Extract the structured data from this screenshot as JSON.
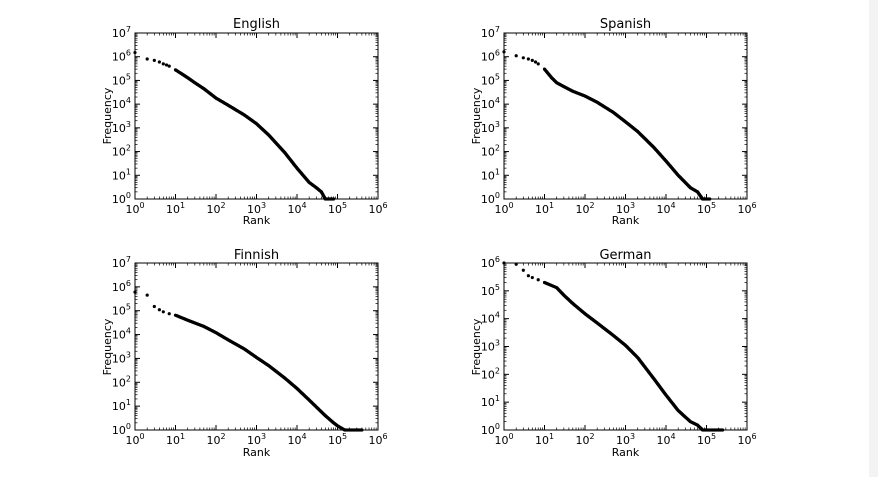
{
  "chart_data": [
    {
      "type": "scatter",
      "title": "English",
      "xlabel": "Rank",
      "ylabel": "Frequency",
      "xscale": "log",
      "yscale": "log",
      "xlim": [
        1,
        1000000
      ],
      "ylim": [
        1,
        10000000
      ],
      "x_ticks": [
        1,
        10,
        100,
        1000,
        10000,
        100000,
        1000000
      ],
      "y_ticks": [
        1,
        10,
        100,
        1000,
        10000,
        100000,
        1000000,
        10000000
      ],
      "grid": false,
      "series": [
        {
          "points": [
            [
              1,
              1500000
            ],
            [
              2,
              800000
            ],
            [
              3,
              700000
            ],
            [
              4,
              600000
            ],
            [
              5,
              500000
            ],
            [
              6,
              450000
            ],
            [
              7,
              400000
            ],
            [
              10,
              280000
            ],
            [
              20,
              130000
            ],
            [
              30,
              80000
            ],
            [
              50,
              45000
            ],
            [
              100,
              18000
            ],
            [
              200,
              9000
            ],
            [
              500,
              3500
            ],
            [
              1000,
              1500
            ],
            [
              2000,
              500
            ],
            [
              5000,
              90
            ],
            [
              10000,
              20
            ],
            [
              20000,
              5
            ],
            [
              30000,
              3
            ],
            [
              40000,
              2
            ],
            [
              50000,
              1
            ],
            [
              80000,
              1
            ]
          ]
        }
      ]
    },
    {
      "type": "scatter",
      "title": "Spanish",
      "xlabel": "Rank",
      "ylabel": "Frequency",
      "xscale": "log",
      "yscale": "log",
      "xlim": [
        1,
        1000000
      ],
      "ylim": [
        1,
        10000000
      ],
      "x_ticks": [
        1,
        10,
        100,
        1000,
        10000,
        100000,
        1000000
      ],
      "y_ticks": [
        1,
        10,
        100,
        1000,
        10000,
        100000,
        1000000,
        10000000
      ],
      "grid": false,
      "series": [
        {
          "points": [
            [
              1,
              1600000
            ],
            [
              2,
              1100000
            ],
            [
              3,
              900000
            ],
            [
              4,
              800000
            ],
            [
              5,
              700000
            ],
            [
              6,
              600000
            ],
            [
              7,
              500000
            ],
            [
              10,
              300000
            ],
            [
              15,
              130000
            ],
            [
              20,
              80000
            ],
            [
              30,
              55000
            ],
            [
              50,
              35000
            ],
            [
              100,
              22000
            ],
            [
              200,
              12000
            ],
            [
              500,
              4500
            ],
            [
              1000,
              1800
            ],
            [
              2000,
              700
            ],
            [
              5000,
              150
            ],
            [
              10000,
              40
            ],
            [
              20000,
              10
            ],
            [
              40000,
              3
            ],
            [
              60000,
              2
            ],
            [
              80000,
              1
            ],
            [
              100000,
              1
            ],
            [
              120000,
              1
            ]
          ]
        }
      ]
    },
    {
      "type": "scatter",
      "title": "Finnish",
      "xlabel": "Rank",
      "ylabel": "Frequency",
      "xscale": "log",
      "yscale": "log",
      "xlim": [
        1,
        1000000
      ],
      "ylim": [
        1,
        10000000
      ],
      "x_ticks": [
        1,
        10,
        100,
        1000,
        10000,
        100000,
        1000000
      ],
      "y_ticks": [
        1,
        10,
        100,
        1000,
        10000,
        100000,
        1000000,
        10000000
      ],
      "grid": false,
      "series": [
        {
          "points": [
            [
              1,
              600000
            ],
            [
              2,
              450000
            ],
            [
              3,
              150000
            ],
            [
              4,
              110000
            ],
            [
              5,
              90000
            ],
            [
              7,
              75000
            ],
            [
              10,
              65000
            ],
            [
              20,
              40000
            ],
            [
              50,
              22000
            ],
            [
              100,
              12000
            ],
            [
              200,
              6000
            ],
            [
              500,
              2500
            ],
            [
              1000,
              1100
            ],
            [
              2000,
              500
            ],
            [
              5000,
              150
            ],
            [
              10000,
              55
            ],
            [
              20000,
              18
            ],
            [
              50000,
              4
            ],
            [
              80000,
              2
            ],
            [
              100000,
              1.5
            ],
            [
              150000,
              1
            ],
            [
              200000,
              1
            ],
            [
              300000,
              1
            ],
            [
              400000,
              1
            ]
          ]
        }
      ]
    },
    {
      "type": "scatter",
      "title": "German",
      "xlabel": "Rank",
      "ylabel": "Frequency",
      "xscale": "log",
      "yscale": "log",
      "xlim": [
        1,
        1000000
      ],
      "ylim": [
        1,
        1000000
      ],
      "x_ticks": [
        1,
        10,
        100,
        1000,
        10000,
        100000,
        1000000
      ],
      "y_ticks": [
        1,
        10,
        100,
        1000,
        10000,
        100000,
        1000000
      ],
      "grid": false,
      "series": [
        {
          "points": [
            [
              1,
              1000000
            ],
            [
              2,
              900000
            ],
            [
              3,
              550000
            ],
            [
              4,
              350000
            ],
            [
              5,
              300000
            ],
            [
              7,
              250000
            ],
            [
              10,
              200000
            ],
            [
              20,
              130000
            ],
            [
              30,
              70000
            ],
            [
              50,
              35000
            ],
            [
              100,
              15000
            ],
            [
              200,
              7000
            ],
            [
              500,
              2500
            ],
            [
              1000,
              1100
            ],
            [
              2000,
              400
            ],
            [
              5000,
              70
            ],
            [
              10000,
              18
            ],
            [
              20000,
              5
            ],
            [
              40000,
              2
            ],
            [
              60000,
              1.5
            ],
            [
              80000,
              1
            ],
            [
              100000,
              1
            ],
            [
              150000,
              1
            ],
            [
              250000,
              1
            ]
          ]
        }
      ]
    }
  ]
}
